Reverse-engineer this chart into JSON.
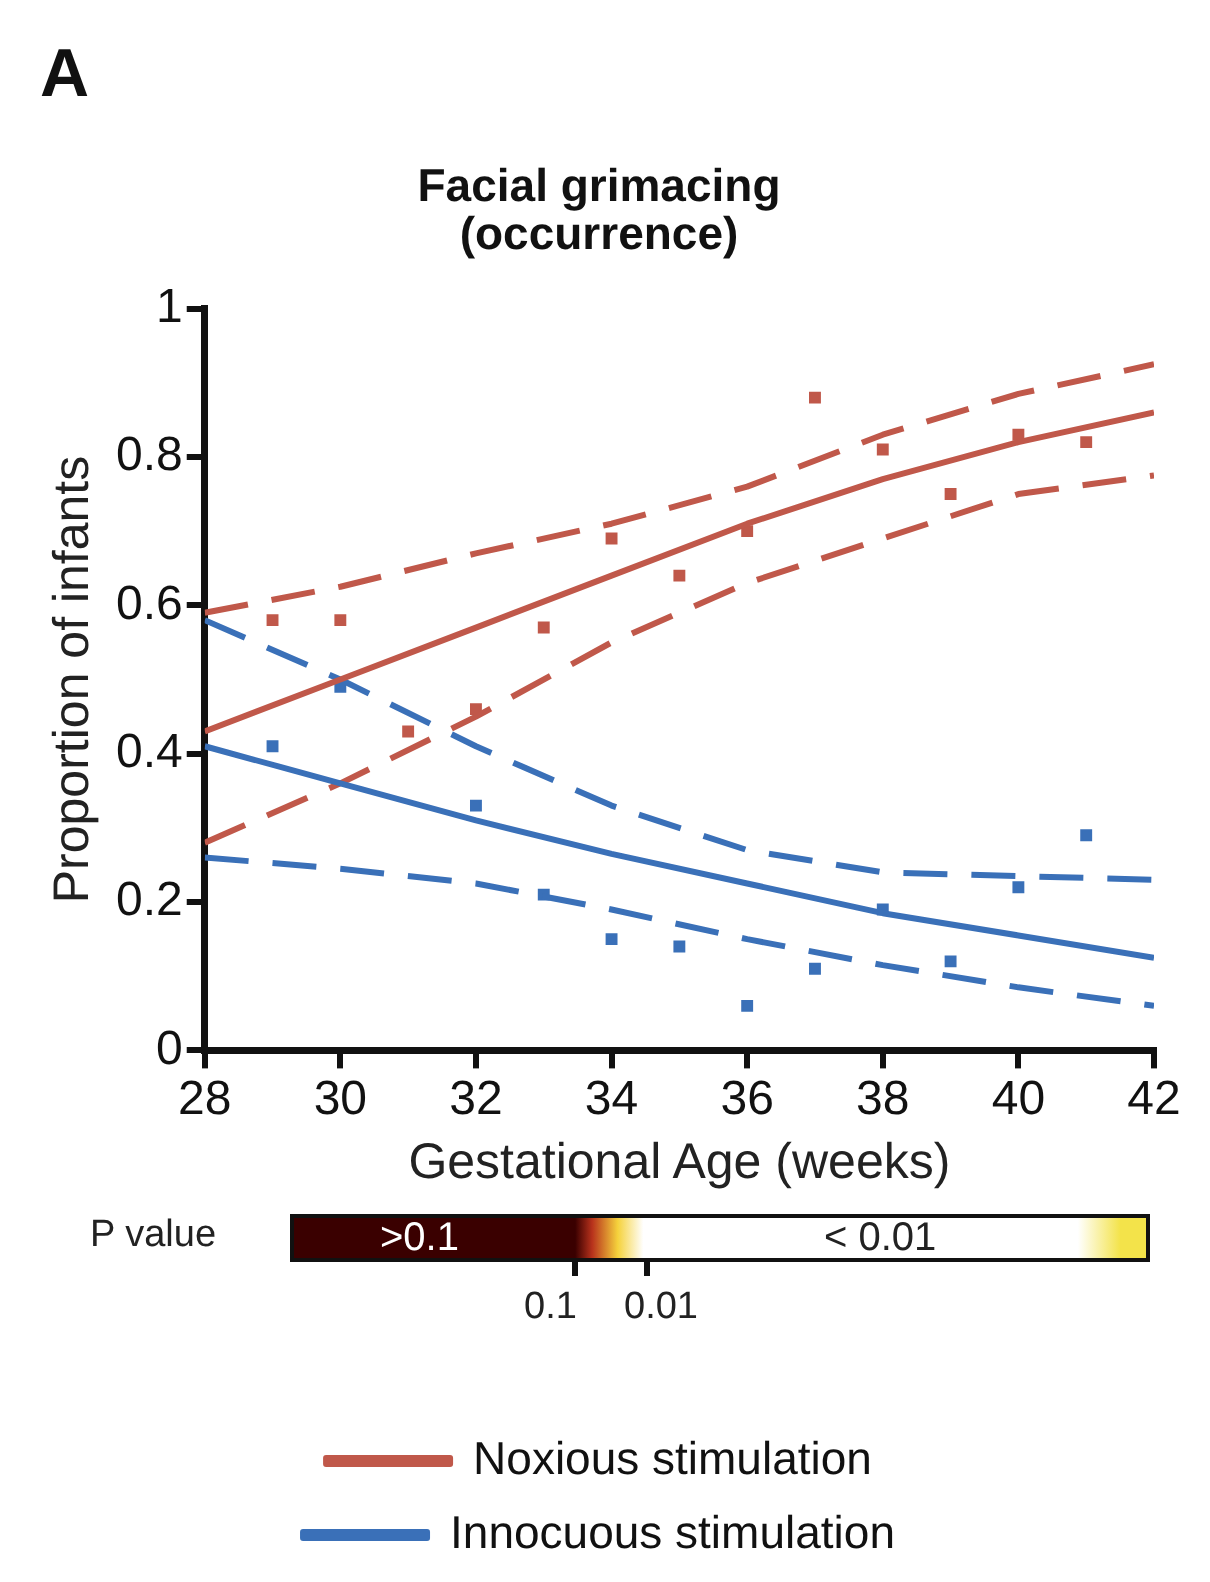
{
  "chart_data": {
    "type": "line",
    "title": "Facial grimacing\n(occurrence)",
    "xlabel": "Gestational Age (weeks)",
    "ylabel": "Proportion of infants",
    "annotations": [
      "A",
      "P value",
      ">0.1",
      "< 0.01",
      "0.1",
      "0.01"
    ],
    "xlim": [
      28,
      42
    ],
    "xticks": [
      28,
      30,
      32,
      34,
      36,
      38,
      40,
      42
    ],
    "ylim": [
      0,
      1
    ],
    "yticks": [
      0,
      0.2,
      0.4,
      0.6,
      0.8,
      1
    ],
    "grid": false,
    "legend": "bottom",
    "series": [
      {
        "name": "Noxious stimulation",
        "color": "#c0584a",
        "line_style": "solid",
        "marker": "none",
        "x": [
          28,
          30,
          32,
          34,
          36,
          38,
          40,
          42
        ],
        "values": [
          0.43,
          0.5,
          0.57,
          0.64,
          0.71,
          0.77,
          0.82,
          0.86
        ]
      },
      {
        "name": "Innocuous stimulation",
        "color": "#3a70b8",
        "line_style": "solid",
        "marker": "none",
        "x": [
          28,
          30,
          32,
          34,
          36,
          38,
          40,
          42
        ],
        "values": [
          0.41,
          0.36,
          0.31,
          0.265,
          0.225,
          0.185,
          0.155,
          0.125
        ]
      },
      {
        "color": "#c0584a",
        "type": "line",
        "line_style": "dashed",
        "marker": "none",
        "x": [
          28,
          30,
          32,
          34,
          36,
          38,
          40,
          42
        ],
        "values": [
          0.59,
          0.625,
          0.67,
          0.71,
          0.76,
          0.83,
          0.885,
          0.925
        ]
      },
      {
        "color": "#c0584a",
        "type": "line",
        "line_style": "dashed",
        "marker": "none",
        "x": [
          28,
          30,
          32,
          34,
          36,
          38,
          40,
          42
        ],
        "values": [
          0.28,
          0.36,
          0.45,
          0.55,
          0.63,
          0.69,
          0.75,
          0.775
        ]
      },
      {
        "color": "#3a70b8",
        "type": "line",
        "line_style": "dashed",
        "marker": "none",
        "x": [
          28,
          30,
          32,
          34,
          36,
          38,
          40,
          42
        ],
        "values": [
          0.58,
          0.5,
          0.41,
          0.33,
          0.27,
          0.24,
          0.235,
          0.23
        ]
      },
      {
        "color": "#3a70b8",
        "type": "line",
        "line_style": "dashed",
        "marker": "none",
        "x": [
          28,
          30,
          32,
          34,
          36,
          38,
          40,
          42
        ],
        "values": [
          0.26,
          0.245,
          0.225,
          0.19,
          0.15,
          0.115,
          0.085,
          0.06
        ]
      },
      {
        "color": "#c0584a",
        "type": "scatter",
        "marker": "square",
        "x": [
          29,
          30,
          31,
          32,
          33,
          34,
          35,
          36,
          37,
          38,
          39,
          40,
          41
        ],
        "values": [
          0.58,
          0.58,
          0.43,
          0.46,
          0.57,
          0.69,
          0.64,
          0.7,
          0.88,
          0.81,
          0.75,
          0.83,
          0.82
        ]
      },
      {
        "color": "#3a70b8",
        "type": "scatter",
        "marker": "square",
        "x": [
          29,
          30,
          32,
          33,
          34,
          35,
          36,
          37,
          38,
          39,
          40,
          41
        ],
        "values": [
          0.41,
          0.49,
          0.33,
          0.21,
          0.15,
          0.14,
          0.06,
          0.11,
          0.19,
          0.12,
          0.22,
          0.29
        ]
      }
    ]
  }
}
